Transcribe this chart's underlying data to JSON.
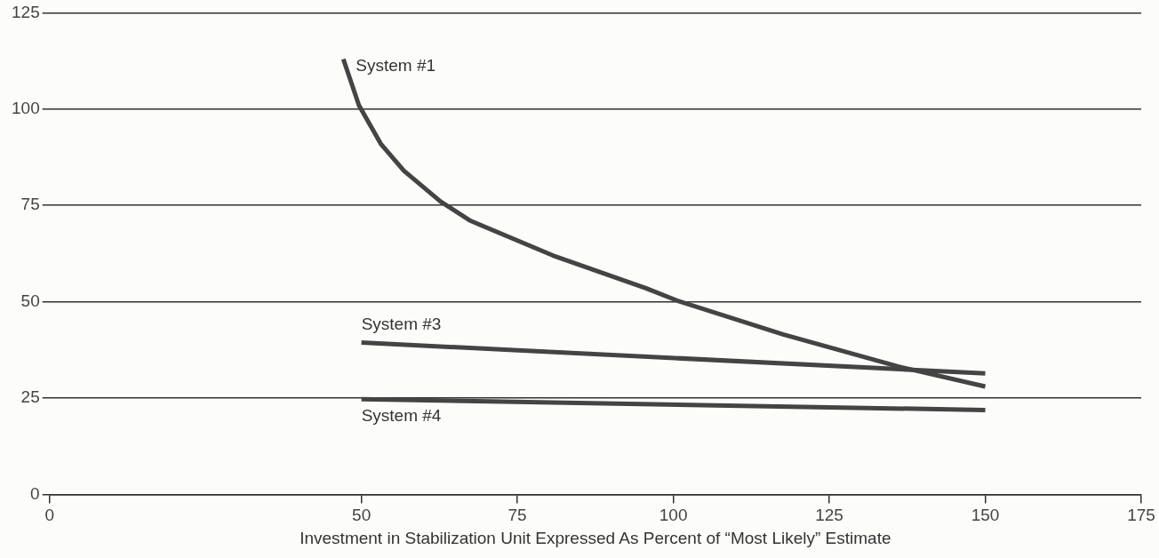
{
  "chart_data": {
    "type": "line",
    "xlabel": "Investment in Stabilization Unit Expressed As Percent of “Most Likely” Estimate",
    "xlim": [
      0,
      175
    ],
    "xticks": [
      0,
      50,
      75,
      100,
      125,
      150,
      175
    ],
    "ylim": [
      0,
      125
    ],
    "yticks": [
      0,
      25,
      50,
      75,
      100,
      125
    ],
    "grid": "y",
    "legend": false,
    "marker": "none",
    "line_style": "solid",
    "series": [
      {
        "name": "System #1",
        "color": "#444444",
        "x": [
          47.1,
          49.6,
          53.1,
          56.8,
          62.7,
          67.5,
          80.7,
          95.6,
          100.6,
          117.6,
          136,
          150
        ],
        "values": [
          113,
          101,
          91,
          84,
          76,
          71,
          62,
          53.5,
          50.3,
          41.5,
          33.2,
          28
        ]
      },
      {
        "name": "System #3",
        "color": "#444444",
        "x": [
          50,
          150
        ],
        "values": [
          39.4,
          31.4
        ]
      },
      {
        "name": "System #4",
        "color": "#444444",
        "x": [
          50,
          150
        ],
        "values": [
          24.7,
          21.9
        ]
      }
    ]
  }
}
